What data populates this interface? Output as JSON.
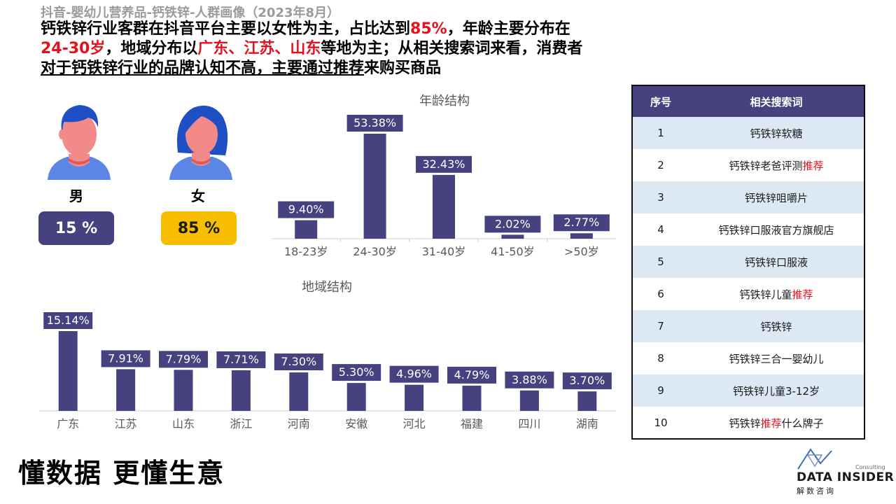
{
  "subtitle": "抖音-婴幼儿营养品-钙铁锌-人群画像（2023年8月）",
  "headline": {
    "p1": "钙铁锌行业客群在抖音平台主要以女性为主，占比达到",
    "p1_red": "85%",
    "p2": "，年龄主要分布在",
    "p3_red": "24-30岁",
    "p4": "，地域分布以",
    "p5_red": "广东、江苏、山东",
    "p6": "等地为主；从相关搜索词来看，消费者",
    "p7_u": "对于钙铁锌行业的品牌认知不高，主要通过推荐",
    "p8": "来购买商品"
  },
  "gender": {
    "male_label": "男",
    "male_pct": "15 %",
    "female_label": "女",
    "female_pct": "85 %",
    "colors": {
      "male_badge": "#46417f",
      "female_badge": "#f7bd00",
      "skin": "#f28a8a",
      "hair": "#1f4fc4",
      "shirt": "#5b86e5"
    }
  },
  "chart_data": [
    {
      "type": "bar",
      "title": "年龄结构",
      "categories": [
        "18-23岁",
        "24-30岁",
        "31-40岁",
        "41-50岁",
        ">50岁"
      ],
      "values": [
        9.4,
        53.38,
        32.43,
        2.02,
        2.77
      ],
      "labels": [
        "9.40%",
        "53.38%",
        "32.43%",
        "2.02%",
        "2.77%"
      ],
      "ylim": [
        0,
        60
      ],
      "color": "#46417f"
    },
    {
      "type": "bar",
      "title": "地域结构",
      "categories": [
        "广东",
        "江苏",
        "山东",
        "浙江",
        "河南",
        "安徽",
        "河北",
        "福建",
        "四川",
        "湖南"
      ],
      "values": [
        15.14,
        7.91,
        7.79,
        7.71,
        7.3,
        5.3,
        4.96,
        4.79,
        3.88,
        3.7
      ],
      "labels": [
        "15.14%",
        "7.91%",
        "7.79%",
        "7.71%",
        "7.30%",
        "5.30%",
        "4.96%",
        "4.79%",
        "3.88%",
        "3.70%"
      ],
      "ylim": [
        0,
        16
      ],
      "color": "#46417f"
    }
  ],
  "table": {
    "headers": [
      "序号",
      "相关搜索词"
    ],
    "rows": [
      {
        "no": "1",
        "pre": "钙铁锌软糖",
        "hl": "",
        "post": ""
      },
      {
        "no": "2",
        "pre": "钙铁锌老爸评测",
        "hl": "推荐",
        "post": ""
      },
      {
        "no": "3",
        "pre": "钙铁锌咀嚼片",
        "hl": "",
        "post": ""
      },
      {
        "no": "4",
        "pre": "钙铁锌口服液官方旗舰店",
        "hl": "",
        "post": ""
      },
      {
        "no": "5",
        "pre": "钙铁锌口服液",
        "hl": "",
        "post": ""
      },
      {
        "no": "6",
        "pre": "钙铁锌儿童",
        "hl": "推荐",
        "post": ""
      },
      {
        "no": "7",
        "pre": "钙铁锌",
        "hl": "",
        "post": ""
      },
      {
        "no": "8",
        "pre": "钙铁锌三合一婴幼儿",
        "hl": "",
        "post": ""
      },
      {
        "no": "9",
        "pre": "钙铁锌儿童3-12岁",
        "hl": "",
        "post": ""
      },
      {
        "no": "10",
        "pre": "钙铁锌",
        "hl": "推荐",
        "post": "什么牌子"
      }
    ],
    "colors": {
      "header": "#46417f",
      "alt_row": "#dce9f5",
      "highlight": "#e8101c"
    }
  },
  "footer": {
    "slogan": "懂数据 更懂生意",
    "logo_name": "DATA INSIDER",
    "logo_sub": "解数咨询",
    "logo_consult": "Consulting"
  }
}
